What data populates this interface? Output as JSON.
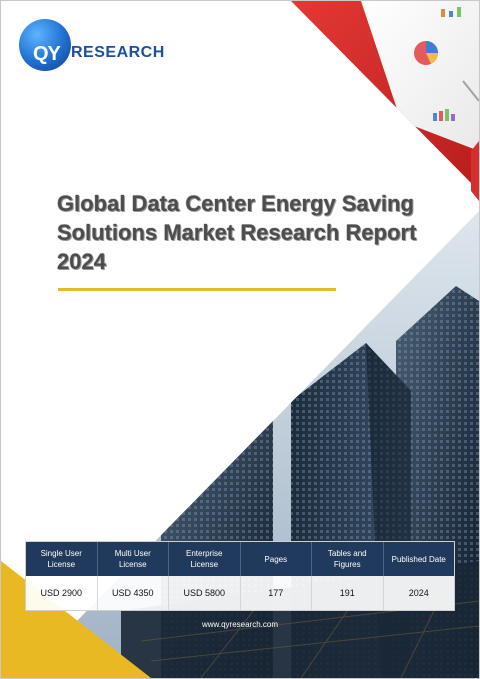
{
  "brand": {
    "logo_mark": "QY",
    "logo_name": "RESEARCH"
  },
  "report": {
    "title": "Global Data Center Energy Saving Solutions Market Research Report 2024"
  },
  "info_table": {
    "headers": [
      "Single User License",
      "Multi User License",
      "Enterprise License",
      "Pages",
      "Tables and Figures",
      "Published Date"
    ],
    "values": [
      "USD 2900",
      "USD 4350",
      "USD 5800",
      "177",
      "191",
      "2024"
    ]
  },
  "footer": {
    "website": "www.qyresearch.com"
  },
  "colors": {
    "accent_red": "#d32f2f",
    "accent_yellow": "#e8b923",
    "table_header": "#1f3a5c",
    "brand_blue": "#1b4fa1"
  }
}
